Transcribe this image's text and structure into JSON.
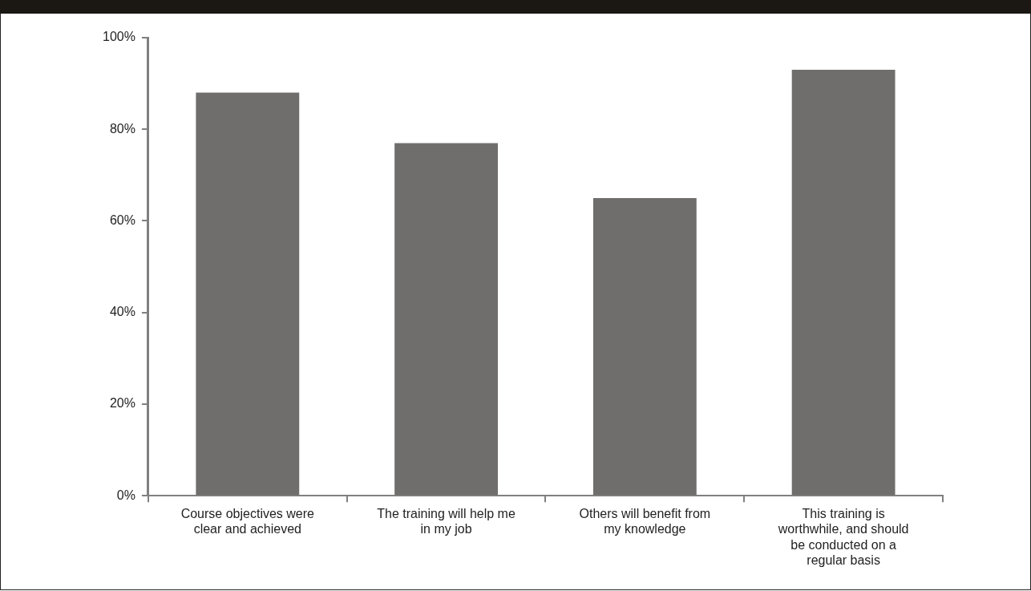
{
  "chart_data": {
    "type": "bar",
    "categories": [
      "Course objectives were clear and achieved",
      "The training will help me in my job",
      "Others will benefit from my knowledge",
      "This training is worthwhile, and should be conducted on a regular basis"
    ],
    "values": [
      88,
      77,
      65,
      93
    ],
    "color": "#6f6e6c",
    "ylim": [
      0,
      100
    ],
    "yticks": [
      {
        "value": 0,
        "label": "0%"
      },
      {
        "value": 20,
        "label": "20%"
      },
      {
        "value": 40,
        "label": "40%"
      },
      {
        "value": 60,
        "label": "60%"
      },
      {
        "value": 80,
        "label": "80%"
      },
      {
        "value": 100,
        "label": "100%"
      }
    ],
    "grid": false,
    "legend": false
  }
}
